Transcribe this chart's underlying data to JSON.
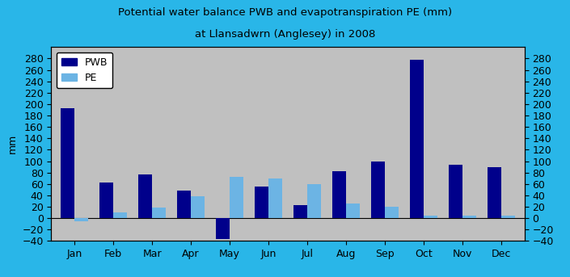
{
  "title_line1": "Potential water balance PWB and evapotranspiration PE (mm)",
  "title_line2": "at Llansadwrn (Anglesey) in 2008",
  "months": [
    "Jan",
    "Feb",
    "Mar",
    "Apr",
    "May",
    "Jun",
    "Jul",
    "Aug",
    "Sep",
    "Oct",
    "Nov",
    "Dec"
  ],
  "pwb": [
    193,
    62,
    77,
    48,
    -37,
    55,
    23,
    83,
    99,
    278,
    93,
    90
  ],
  "pe": [
    -5,
    10,
    19,
    38,
    72,
    70,
    59,
    26,
    20,
    5,
    4,
    5
  ],
  "pwb_color": "#00008B",
  "pe_color": "#6CB4E4",
  "background_color": "#C0C0C0",
  "outer_background": "#29B6E8",
  "ylim": [
    -40,
    300
  ],
  "yticks": [
    -40,
    -20,
    0,
    20,
    40,
    60,
    80,
    100,
    120,
    140,
    160,
    180,
    200,
    220,
    240,
    260,
    280
  ],
  "ylabel": "mm",
  "bar_width": 0.35,
  "figsize": [
    7.05,
    3.43
  ],
  "dpi": 100
}
